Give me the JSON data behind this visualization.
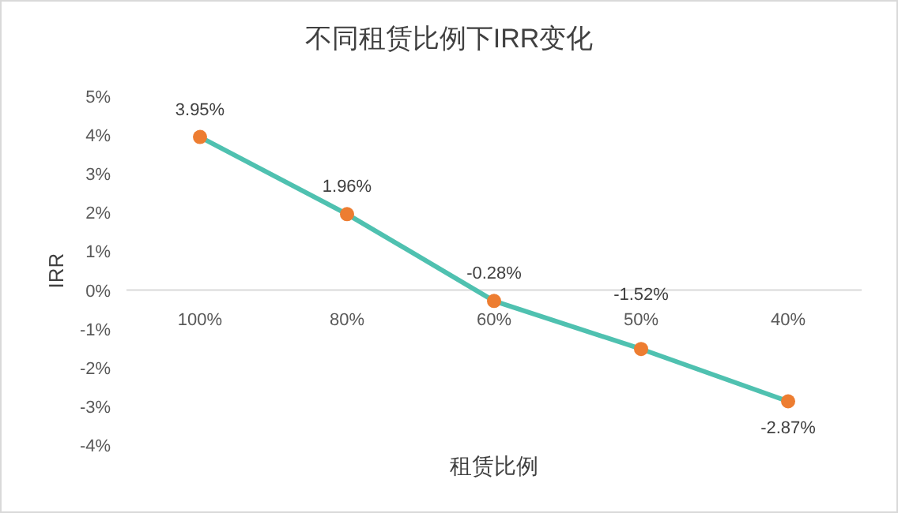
{
  "chart_data": {
    "type": "line",
    "title": "不同租赁比例下IRR变化",
    "xlabel": "租赁比例",
    "ylabel": "IRR",
    "categories": [
      "100%",
      "80%",
      "60%",
      "50%",
      "40%"
    ],
    "series": [
      {
        "color": "#4fc1b0",
        "colors": [
          "#ed7d31",
          "#ed7d31",
          "#ed7d31",
          "#ed7d31",
          "#ed7d31"
        ],
        "values": [
          3.95,
          1.96,
          -0.28,
          -1.52,
          -2.87
        ],
        "value_labels": [
          "3.95%",
          "1.96%",
          "-0.28%",
          "-1.52%",
          "-2.87%"
        ]
      }
    ],
    "ylim": [
      -4,
      5
    ],
    "yticks": [
      {
        "value": 5,
        "label": "5%"
      },
      {
        "value": 4,
        "label": "4%"
      },
      {
        "value": 3,
        "label": "3%"
      },
      {
        "value": 2,
        "label": "2%"
      },
      {
        "value": 1,
        "label": "1%"
      },
      {
        "value": 0,
        "label": "0%"
      },
      {
        "value": -1,
        "label": "-1%"
      },
      {
        "value": -2,
        "label": "-2%"
      },
      {
        "value": -3,
        "label": "-3%"
      },
      {
        "value": -4,
        "label": "-4%"
      }
    ],
    "marker": "circle",
    "line_style": "solid"
  }
}
